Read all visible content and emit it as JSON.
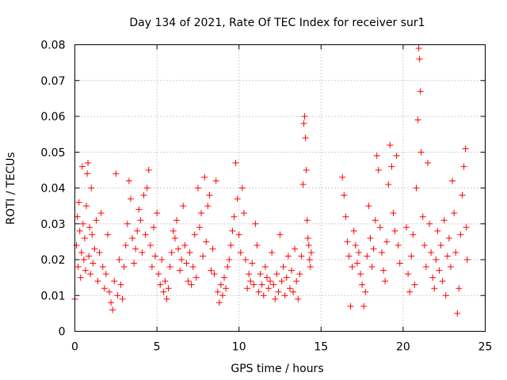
{
  "chart_data": {
    "type": "scatter",
    "title": "Day 134 of 2021, Rate Of TEC Index for receiver sur1",
    "xlabel": "GPS time / hours",
    "ylabel": "ROTI / TECUs",
    "xlim": [
      0,
      25
    ],
    "ylim": [
      0,
      0.08
    ],
    "xticks": [
      0,
      5,
      10,
      15,
      20,
      25
    ],
    "xtick_labels": [
      "0",
      "5",
      "10",
      "15",
      "20",
      "25"
    ],
    "yticks": [
      0,
      0.01,
      0.02,
      0.03,
      0.04,
      0.05,
      0.06,
      0.07,
      0.08
    ],
    "ytick_labels": [
      "0",
      "0.01",
      "0.02",
      "0.03",
      "0.04",
      "0.05",
      "0.06",
      "0.07",
      "0.08"
    ],
    "grid": true,
    "marker": "+",
    "color": "#ff0000",
    "series": [
      {
        "name": "sur1",
        "points": [
          [
            0.0,
            0.009
          ],
          [
            0.1,
            0.024
          ],
          [
            0.15,
            0.032
          ],
          [
            0.2,
            0.018
          ],
          [
            0.25,
            0.036
          ],
          [
            0.3,
            0.028
          ],
          [
            0.35,
            0.015
          ],
          [
            0.4,
            0.022
          ],
          [
            0.45,
            0.046
          ],
          [
            0.5,
            0.03
          ],
          [
            0.55,
            0.02
          ],
          [
            0.6,
            0.026
          ],
          [
            0.65,
            0.017
          ],
          [
            0.7,
            0.035
          ],
          [
            0.75,
            0.044
          ],
          [
            0.8,
            0.047
          ],
          [
            0.85,
            0.021
          ],
          [
            0.9,
            0.029
          ],
          [
            0.95,
            0.016
          ],
          [
            1.0,
            0.04
          ],
          [
            1.05,
            0.027
          ],
          [
            1.1,
            0.019
          ],
          [
            1.2,
            0.023
          ],
          [
            1.3,
            0.031
          ],
          [
            1.4,
            0.014
          ],
          [
            1.5,
            0.022
          ],
          [
            1.6,
            0.033
          ],
          [
            1.7,
            0.018
          ],
          [
            1.8,
            0.012
          ],
          [
            1.9,
            0.016
          ],
          [
            2.0,
            0.027
          ],
          [
            2.1,
            0.011
          ],
          [
            2.2,
            0.008
          ],
          [
            2.3,
            0.006
          ],
          [
            2.4,
            0.014
          ],
          [
            2.5,
            0.044
          ],
          [
            2.6,
            0.01
          ],
          [
            2.7,
            0.02
          ],
          [
            2.8,
            0.013
          ],
          [
            2.9,
            0.009
          ],
          [
            3.0,
            0.018
          ],
          [
            3.1,
            0.024
          ],
          [
            3.2,
            0.03
          ],
          [
            3.3,
            0.042
          ],
          [
            3.4,
            0.037
          ],
          [
            3.5,
            0.026
          ],
          [
            3.6,
            0.019
          ],
          [
            3.7,
            0.023
          ],
          [
            3.8,
            0.028
          ],
          [
            3.9,
            0.034
          ],
          [
            4.0,
            0.031
          ],
          [
            4.1,
            0.022
          ],
          [
            4.2,
            0.038
          ],
          [
            4.3,
            0.027
          ],
          [
            4.4,
            0.04
          ],
          [
            4.5,
            0.045
          ],
          [
            4.6,
            0.024
          ],
          [
            4.7,
            0.018
          ],
          [
            4.8,
            0.029
          ],
          [
            4.9,
            0.021
          ],
          [
            5.0,
            0.033
          ],
          [
            5.1,
            0.016
          ],
          [
            5.2,
            0.013
          ],
          [
            5.3,
            0.02
          ],
          [
            5.4,
            0.011
          ],
          [
            5.5,
            0.014
          ],
          [
            5.6,
            0.009
          ],
          [
            5.7,
            0.012
          ],
          [
            5.8,
            0.018
          ],
          [
            5.9,
            0.022
          ],
          [
            6.0,
            0.028
          ],
          [
            6.1,
            0.026
          ],
          [
            6.2,
            0.031
          ],
          [
            6.3,
            0.023
          ],
          [
            6.4,
            0.017
          ],
          [
            6.5,
            0.02
          ],
          [
            6.6,
            0.035
          ],
          [
            6.7,
            0.024
          ],
          [
            6.8,
            0.019
          ],
          [
            6.9,
            0.014
          ],
          [
            7.0,
            0.022
          ],
          [
            7.1,
            0.013
          ],
          [
            7.2,
            0.018
          ],
          [
            7.3,
            0.027
          ],
          [
            7.4,
            0.015
          ],
          [
            7.5,
            0.04
          ],
          [
            7.6,
            0.029
          ],
          [
            7.7,
            0.033
          ],
          [
            7.8,
            0.021
          ],
          [
            7.9,
            0.043
          ],
          [
            8.0,
            0.025
          ],
          [
            8.1,
            0.035
          ],
          [
            8.2,
            0.038
          ],
          [
            8.3,
            0.017
          ],
          [
            8.4,
            0.023
          ],
          [
            8.5,
            0.016
          ],
          [
            8.6,
            0.042
          ],
          [
            8.7,
            0.011
          ],
          [
            8.8,
            0.008
          ],
          [
            8.9,
            0.013
          ],
          [
            9.0,
            0.01
          ],
          [
            9.1,
            0.015
          ],
          [
            9.2,
            0.012
          ],
          [
            9.3,
            0.018
          ],
          [
            9.4,
            0.02
          ],
          [
            9.5,
            0.024
          ],
          [
            9.6,
            0.028
          ],
          [
            9.7,
            0.032
          ],
          [
            9.8,
            0.047
          ],
          [
            9.9,
            0.037
          ],
          [
            10.0,
            0.027
          ],
          [
            10.1,
            0.022
          ],
          [
            10.2,
            0.04
          ],
          [
            10.3,
            0.033
          ],
          [
            10.4,
            0.02
          ],
          [
            10.5,
            0.012
          ],
          [
            10.6,
            0.016
          ],
          [
            10.7,
            0.014
          ],
          [
            10.8,
            0.019
          ],
          [
            10.9,
            0.013
          ],
          [
            11.0,
            0.03
          ],
          [
            11.1,
            0.024
          ],
          [
            11.2,
            0.011
          ],
          [
            11.3,
            0.016
          ],
          [
            11.4,
            0.013
          ],
          [
            11.5,
            0.01
          ],
          [
            11.6,
            0.018
          ],
          [
            11.7,
            0.015
          ],
          [
            11.8,
            0.012
          ],
          [
            11.9,
            0.014
          ],
          [
            12.0,
            0.022
          ],
          [
            12.1,
            0.013
          ],
          [
            12.2,
            0.009
          ],
          [
            12.3,
            0.016
          ],
          [
            12.4,
            0.011
          ],
          [
            12.5,
            0.027
          ],
          [
            12.6,
            0.014
          ],
          [
            12.7,
            0.018
          ],
          [
            12.8,
            0.01
          ],
          [
            12.9,
            0.015
          ],
          [
            13.0,
            0.021
          ],
          [
            13.1,
            0.012
          ],
          [
            13.2,
            0.017
          ],
          [
            13.3,
            0.011
          ],
          [
            13.4,
            0.023
          ],
          [
            13.5,
            0.014
          ],
          [
            13.6,
            0.009
          ],
          [
            13.7,
            0.016
          ],
          [
            13.8,
            0.021
          ],
          [
            13.9,
            0.041
          ],
          [
            13.95,
            0.058
          ],
          [
            14.0,
            0.06
          ],
          [
            14.05,
            0.054
          ],
          [
            14.1,
            0.045
          ],
          [
            14.15,
            0.031
          ],
          [
            14.2,
            0.026
          ],
          [
            14.25,
            0.024
          ],
          [
            14.3,
            0.02
          ],
          [
            14.35,
            0.018
          ],
          [
            14.4,
            0.022
          ],
          [
            16.3,
            0.043
          ],
          [
            16.4,
            0.038
          ],
          [
            16.5,
            0.032
          ],
          [
            16.6,
            0.025
          ],
          [
            16.7,
            0.021
          ],
          [
            16.8,
            0.007
          ],
          [
            16.9,
            0.018
          ],
          [
            17.0,
            0.028
          ],
          [
            17.1,
            0.024
          ],
          [
            17.2,
            0.019
          ],
          [
            17.3,
            0.022
          ],
          [
            17.4,
            0.016
          ],
          [
            17.5,
            0.013
          ],
          [
            17.6,
            0.007
          ],
          [
            17.7,
            0.011
          ],
          [
            17.8,
            0.021
          ],
          [
            17.9,
            0.035
          ],
          [
            18.0,
            0.026
          ],
          [
            18.1,
            0.018
          ],
          [
            18.2,
            0.023
          ],
          [
            18.3,
            0.031
          ],
          [
            18.4,
            0.049
          ],
          [
            18.5,
            0.045
          ],
          [
            18.6,
            0.029
          ],
          [
            18.7,
            0.022
          ],
          [
            18.8,
            0.017
          ],
          [
            18.9,
            0.014
          ],
          [
            19.0,
            0.025
          ],
          [
            19.1,
            0.041
          ],
          [
            19.2,
            0.052
          ],
          [
            19.3,
            0.046
          ],
          [
            19.4,
            0.033
          ],
          [
            19.5,
            0.028
          ],
          [
            19.6,
            0.049
          ],
          [
            19.7,
            0.024
          ],
          [
            19.8,
            0.019
          ],
          [
            20.2,
            0.029
          ],
          [
            20.3,
            0.016
          ],
          [
            20.4,
            0.011
          ],
          [
            20.5,
            0.021
          ],
          [
            20.6,
            0.027
          ],
          [
            20.7,
            0.013
          ],
          [
            20.8,
            0.04
          ],
          [
            20.9,
            0.059
          ],
          [
            20.95,
            0.079
          ],
          [
            21.0,
            0.076
          ],
          [
            21.05,
            0.067
          ],
          [
            21.1,
            0.05
          ],
          [
            21.2,
            0.032
          ],
          [
            21.3,
            0.024
          ],
          [
            21.4,
            0.018
          ],
          [
            21.5,
            0.047
          ],
          [
            21.6,
            0.03
          ],
          [
            21.7,
            0.022
          ],
          [
            21.8,
            0.015
          ],
          [
            21.9,
            0.012
          ],
          [
            22.0,
            0.02
          ],
          [
            22.1,
            0.028
          ],
          [
            22.2,
            0.017
          ],
          [
            22.3,
            0.024
          ],
          [
            22.4,
            0.014
          ],
          [
            22.5,
            0.031
          ],
          [
            22.6,
            0.01
          ],
          [
            22.7,
            0.021
          ],
          [
            22.8,
            0.026
          ],
          [
            22.9,
            0.018
          ],
          [
            23.0,
            0.042
          ],
          [
            23.1,
            0.033
          ],
          [
            23.2,
            0.022
          ],
          [
            23.3,
            0.005
          ],
          [
            23.4,
            0.012
          ],
          [
            23.5,
            0.027
          ],
          [
            23.6,
            0.038
          ],
          [
            23.7,
            0.046
          ],
          [
            23.8,
            0.051
          ],
          [
            23.85,
            0.029
          ],
          [
            23.9,
            0.02
          ]
        ]
      }
    ]
  }
}
